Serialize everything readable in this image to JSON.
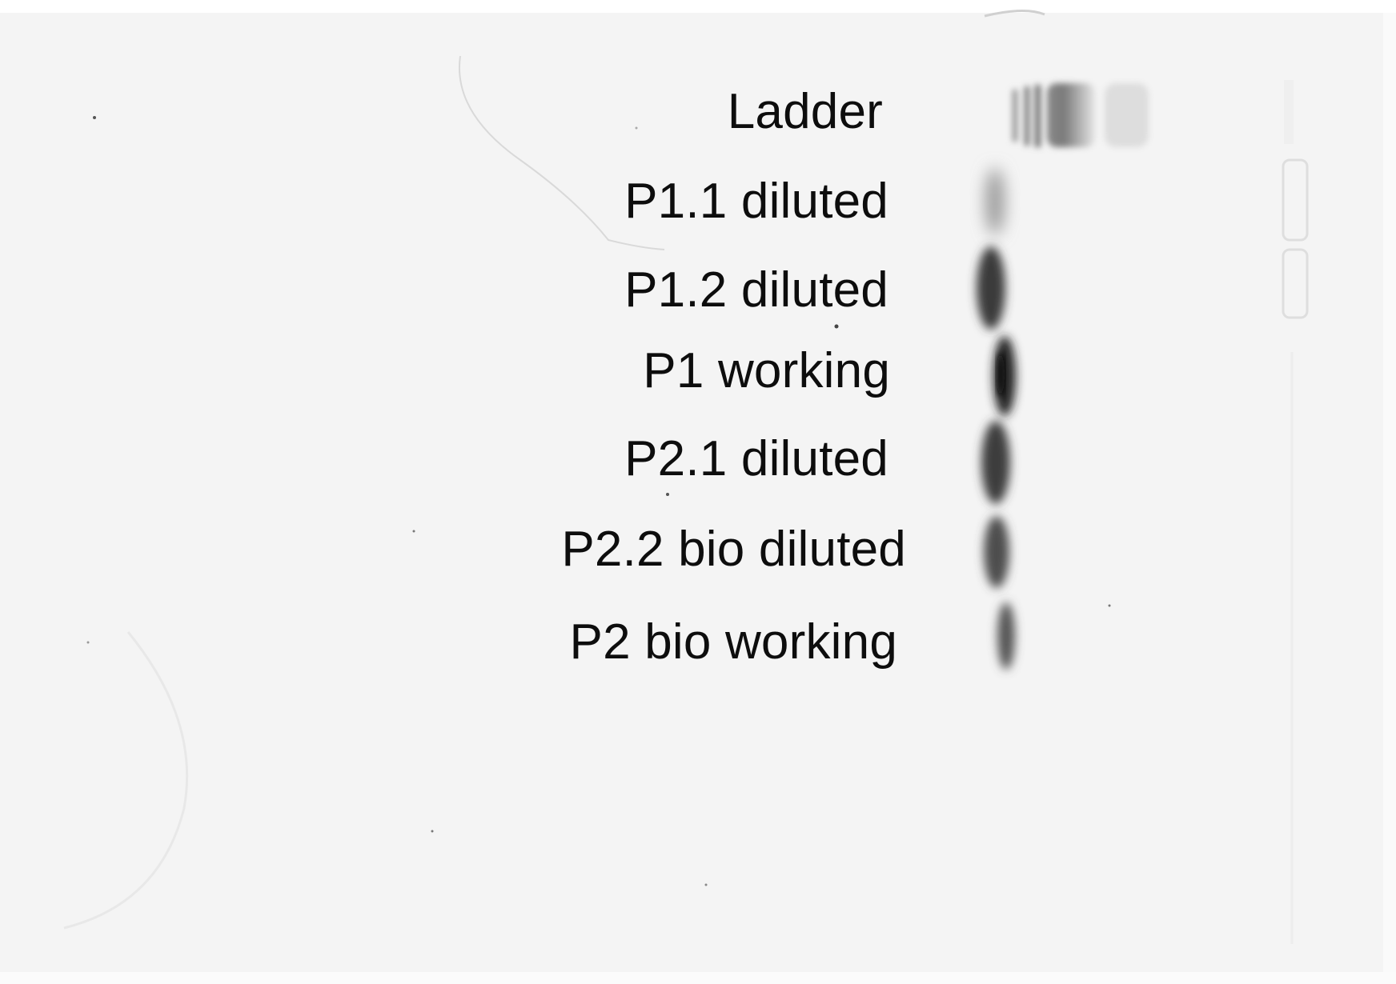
{
  "gel_image": {
    "lanes": [
      {
        "label": "Ladder",
        "band": "ladder-smear"
      },
      {
        "label": "P1.1 diluted",
        "band": "faint"
      },
      {
        "label": "P1.2 diluted",
        "band": "strong"
      },
      {
        "label": "P1 working",
        "band": "strong-dark"
      },
      {
        "label": "P2.1 diluted",
        "band": "strong"
      },
      {
        "label": "P2.2 bio diluted",
        "band": "medium"
      },
      {
        "label": "P2 bio working",
        "band": "medium"
      }
    ],
    "colors": {
      "gel_background": "#f4f4f4",
      "band_dark": "#2a2a2a",
      "label_text": "#0d0d0d"
    }
  }
}
